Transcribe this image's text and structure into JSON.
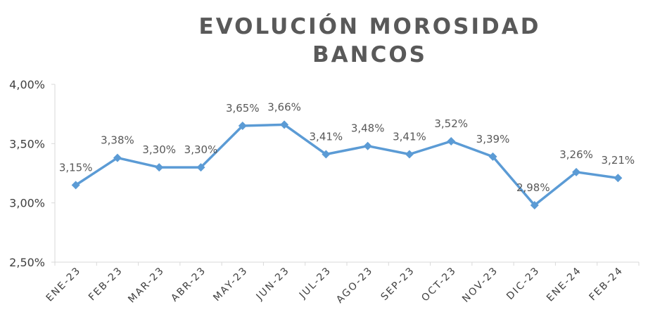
{
  "chart_data": {
    "type": "line",
    "title_lines": [
      "EVOLUCIÓN MOROSIDAD",
      "BANCOS"
    ],
    "categories": [
      "ENE-23",
      "FEB-23",
      "MAR-23",
      "ABR-23",
      "MAY-23",
      "JUN-23",
      "JUL-23",
      "AGO-23",
      "SEP-23",
      "OCT-23",
      "NOV-23",
      "DIC-23",
      "ENE-24",
      "FEB-24"
    ],
    "values": [
      3.15,
      3.38,
      3.3,
      3.3,
      3.65,
      3.66,
      3.41,
      3.48,
      3.41,
      3.52,
      3.39,
      2.98,
      3.26,
      3.21
    ],
    "value_labels": [
      "3,15%",
      "3,38%",
      "3,30%",
      "3,30%",
      "3,65%",
      "3,66%",
      "3,41%",
      "3,48%",
      "3,41%",
      "3,52%",
      "3,39%",
      "2,98%",
      "3,26%",
      "3,21%"
    ],
    "ylim": [
      2.5,
      4.0
    ],
    "yticks": [
      2.5,
      3.0,
      3.5,
      4.0
    ],
    "ytick_labels": [
      "2,50%",
      "3,00%",
      "3,50%",
      "4,00%"
    ],
    "xlabel": "",
    "ylabel": "",
    "grid": false,
    "legend": "none",
    "line_color": "#5B9BD5",
    "marker": "diamond"
  }
}
